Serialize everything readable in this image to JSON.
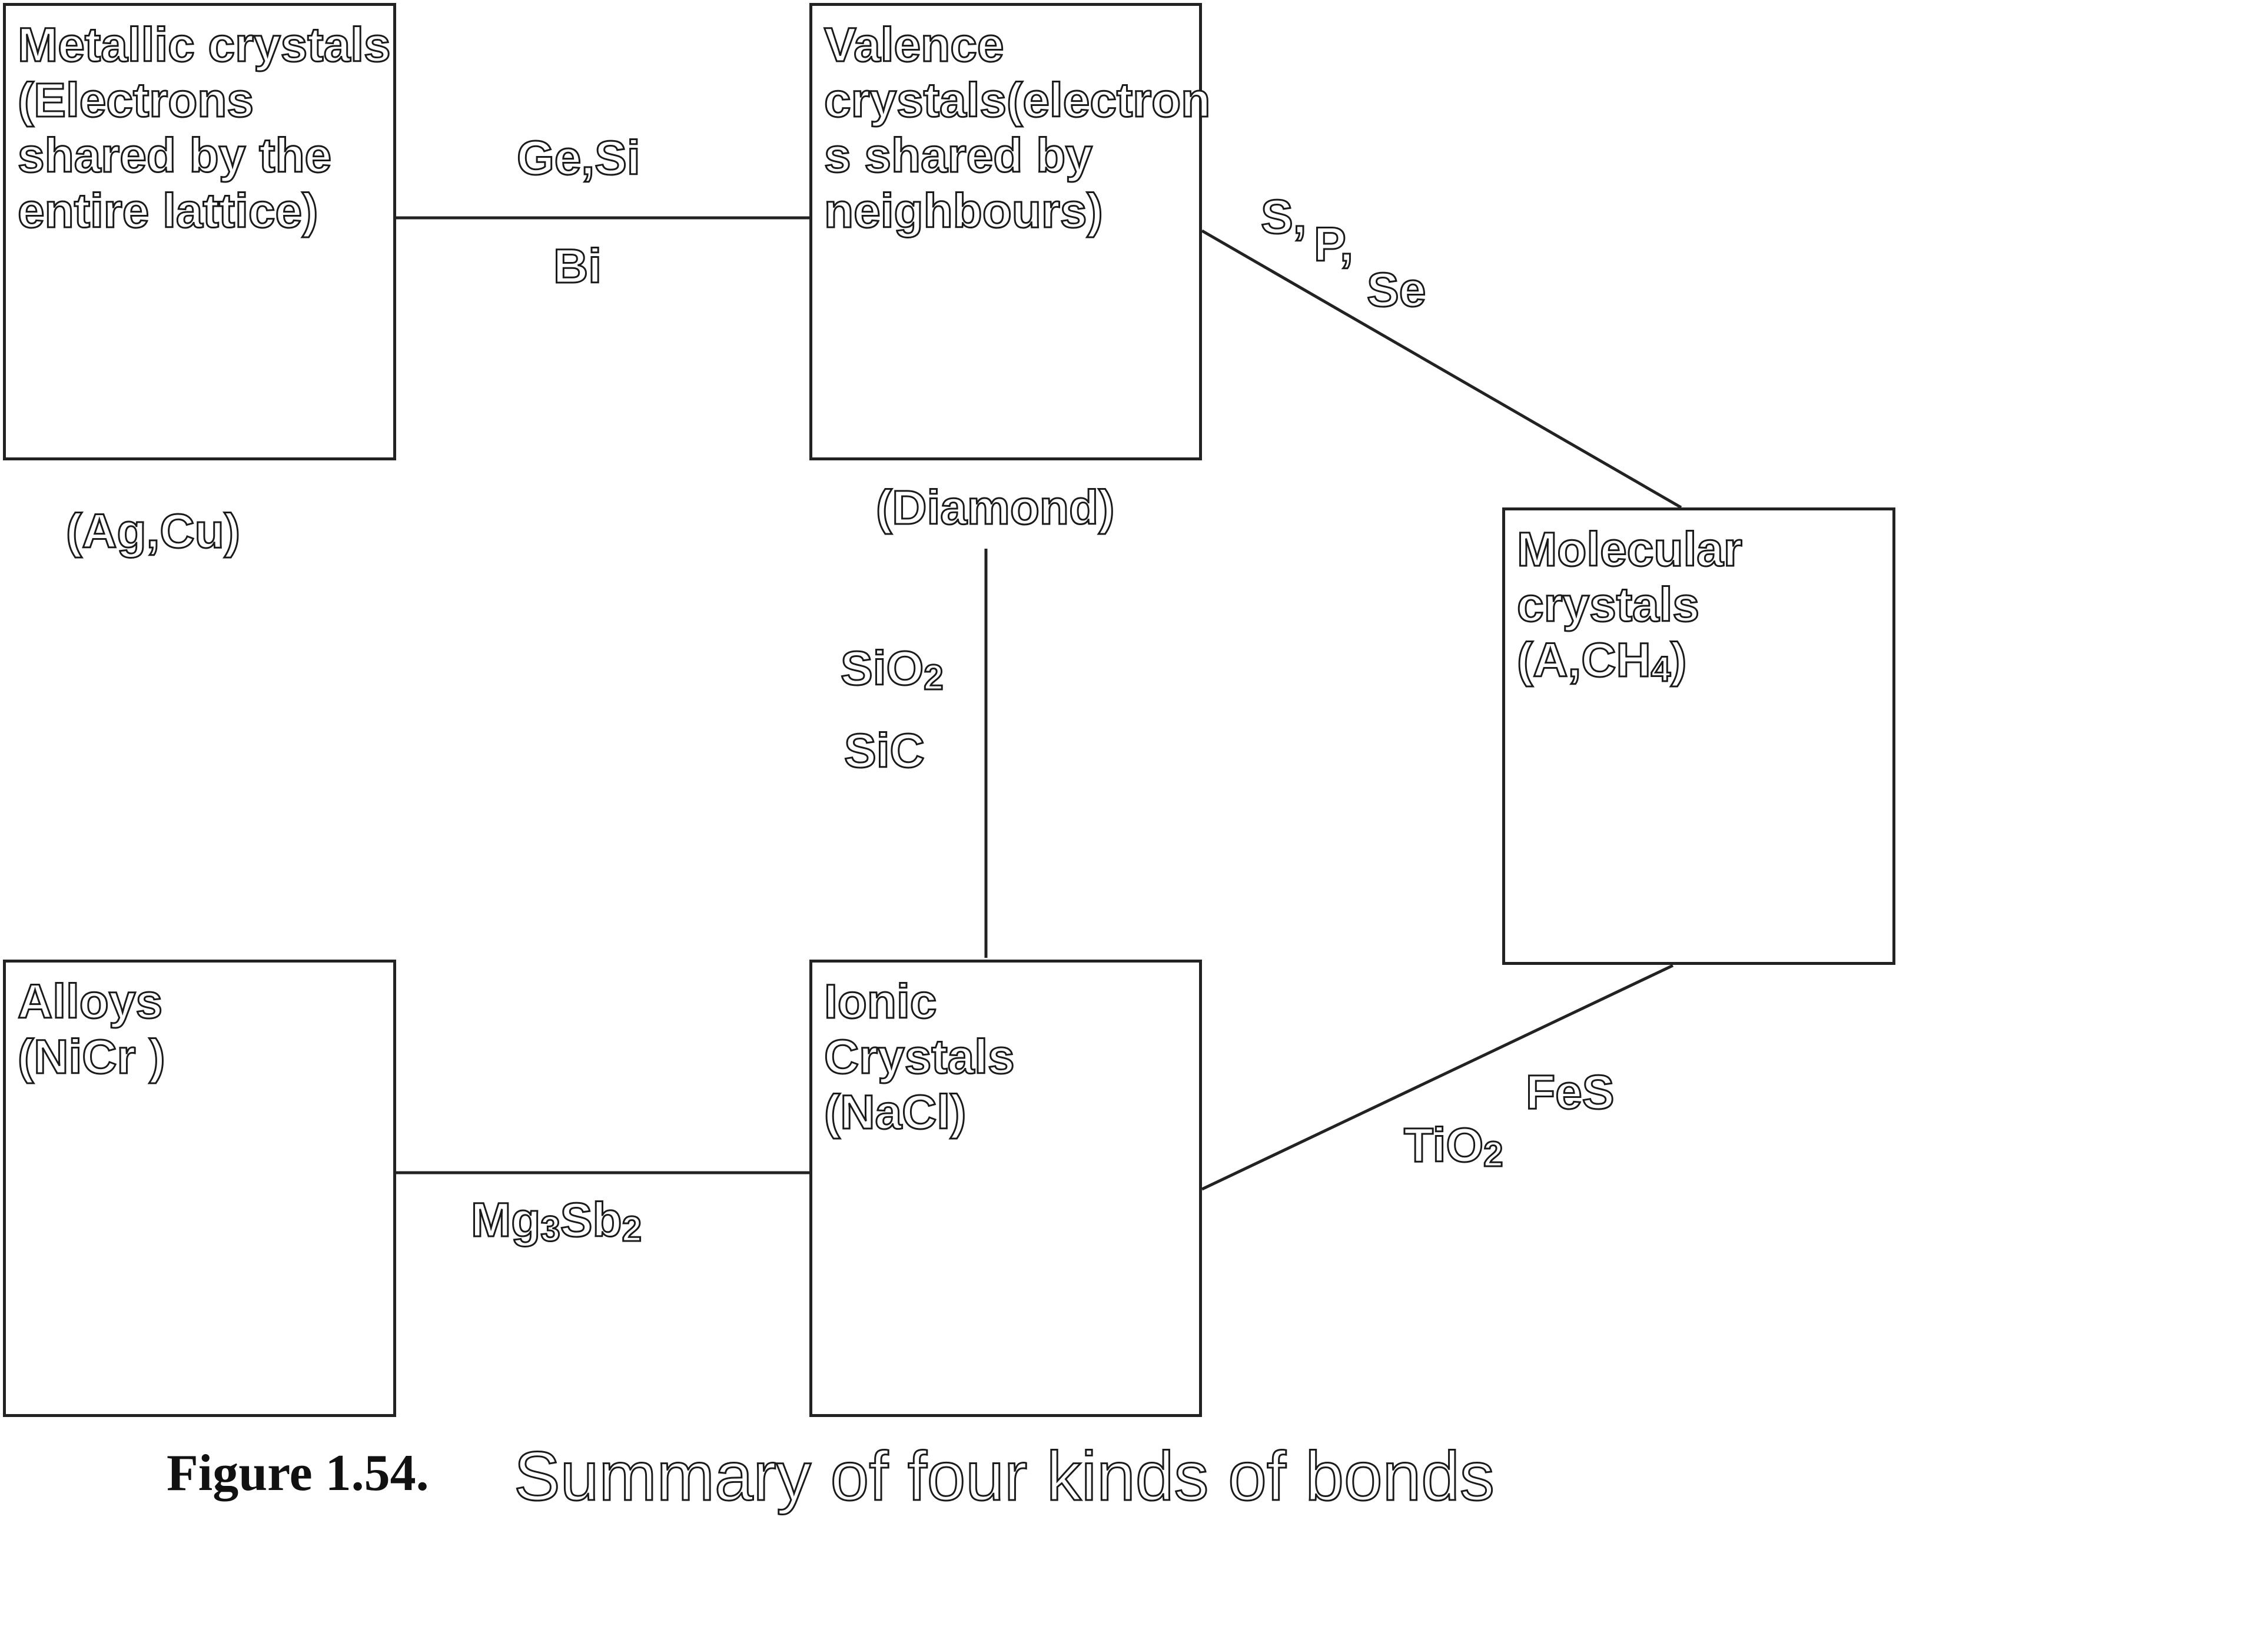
{
  "boxes": {
    "metallic": {
      "lines": [
        "Metallic crystals",
        "(Electrons",
        "shared by the",
        "entire lattice)"
      ]
    },
    "valence": {
      "lines": [
        "Valence",
        "crystals(electron",
        "s shared by",
        "neighbours)"
      ]
    },
    "molecular": {
      "lines": [
        "Molecular",
        "crystals"
      ],
      "formula_prefix": "(A,CH",
      "formula_sub": "4",
      "formula_suffix": ")"
    },
    "alloys": {
      "lines": [
        "Alloys",
        "(NiCr )"
      ]
    },
    "ionic": {
      "lines": [
        "Ionic",
        "Crystals",
        "(NaCl)"
      ]
    }
  },
  "examples": {
    "metallic": "(Ag,Cu)",
    "valence": "(Diamond)"
  },
  "edges": {
    "metallic_valence_top": "Ge,Si",
    "metallic_valence_bottom": "Bi",
    "valence_molecular": [
      "S,",
      "P,",
      "Se"
    ],
    "valence_ionic": [
      {
        "base": "SiO",
        "sub": "2"
      },
      {
        "base": "SiC",
        "sub": ""
      }
    ],
    "molecular_ionic": [
      {
        "base": "FeS",
        "sub": ""
      },
      {
        "base": "TiO",
        "sub": "2"
      }
    ],
    "alloys_ionic": {
      "p1": "Mg",
      "s1": "3",
      "p2": "Sb",
      "s2": "2"
    }
  },
  "caption": {
    "prefix": "Figure 1.54.",
    "text": "Summary of four kinds of bonds"
  }
}
